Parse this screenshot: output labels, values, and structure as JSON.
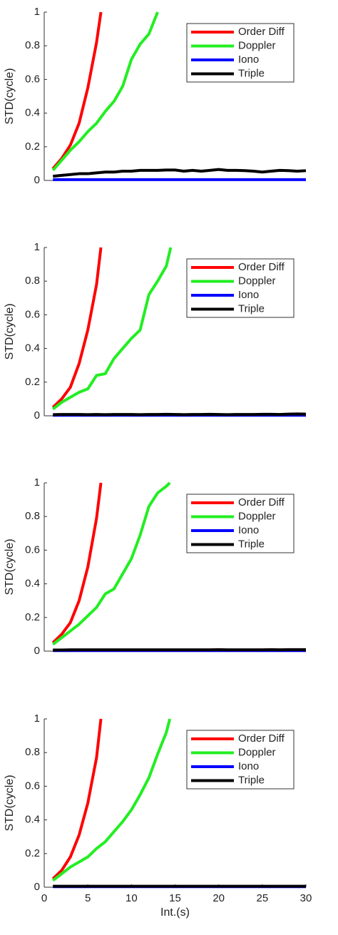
{
  "chart_data": [
    {
      "type": "line",
      "ylabel": "STD(cycle)",
      "xlim": [
        0,
        30
      ],
      "ylim": [
        0,
        1
      ],
      "yticks": [
        0,
        0.2,
        0.4,
        0.6,
        0.8,
        1
      ],
      "legend": "upper right",
      "series": [
        {
          "name": "Order Diff",
          "color": "#ff0000",
          "x": [
            1,
            2,
            3,
            4,
            5,
            6,
            6.5
          ],
          "values": [
            0.07,
            0.13,
            0.21,
            0.34,
            0.55,
            0.82,
            1.0
          ]
        },
        {
          "name": "Doppler",
          "color": "#22ee22",
          "x": [
            1,
            2,
            3,
            4,
            5,
            6,
            7,
            8,
            9,
            10,
            11,
            12,
            13
          ],
          "values": [
            0.06,
            0.12,
            0.18,
            0.23,
            0.29,
            0.34,
            0.41,
            0.47,
            0.56,
            0.72,
            0.81,
            0.87,
            1.0
          ]
        },
        {
          "name": "Iono",
          "color": "#0000ff",
          "x": [
            1,
            2,
            3,
            4,
            5,
            6,
            7,
            8,
            9,
            10,
            11,
            12,
            13,
            14,
            15,
            16,
            17,
            18,
            19,
            20,
            21,
            22,
            23,
            24,
            25,
            26,
            27,
            28,
            29,
            30
          ],
          "values": [
            0.005,
            0.005,
            0.005,
            0.005,
            0.005,
            0.005,
            0.005,
            0.005,
            0.005,
            0.005,
            0.005,
            0.005,
            0.005,
            0.005,
            0.005,
            0.005,
            0.005,
            0.005,
            0.005,
            0.005,
            0.005,
            0.005,
            0.005,
            0.005,
            0.005,
            0.005,
            0.005,
            0.005,
            0.005,
            0.005
          ]
        },
        {
          "name": "Triple",
          "color": "#000000",
          "x": [
            1,
            2,
            3,
            4,
            5,
            6,
            7,
            8,
            9,
            10,
            11,
            12,
            13,
            14,
            15,
            16,
            17,
            18,
            19,
            20,
            21,
            22,
            23,
            24,
            25,
            26,
            27,
            28,
            29,
            30
          ],
          "values": [
            0.025,
            0.03,
            0.035,
            0.04,
            0.04,
            0.045,
            0.05,
            0.05,
            0.055,
            0.055,
            0.06,
            0.06,
            0.06,
            0.062,
            0.062,
            0.055,
            0.06,
            0.055,
            0.06,
            0.065,
            0.06,
            0.06,
            0.058,
            0.055,
            0.05,
            0.055,
            0.06,
            0.058,
            0.055,
            0.058
          ]
        }
      ]
    },
    {
      "type": "line",
      "ylabel": "STD(cycle)",
      "xlim": [
        0,
        30
      ],
      "ylim": [
        0,
        1
      ],
      "yticks": [
        0,
        0.2,
        0.4,
        0.6,
        0.8,
        1
      ],
      "legend": "upper right",
      "series": [
        {
          "name": "Order Diff",
          "color": "#ff0000",
          "x": [
            1,
            2,
            3,
            4,
            5,
            6,
            6.5
          ],
          "values": [
            0.05,
            0.1,
            0.17,
            0.31,
            0.51,
            0.78,
            1.0
          ]
        },
        {
          "name": "Doppler",
          "color": "#22ee22",
          "x": [
            1,
            2,
            3,
            4,
            5,
            6,
            7,
            8,
            9,
            10,
            11,
            12,
            13,
            14,
            14.5
          ],
          "values": [
            0.04,
            0.08,
            0.11,
            0.14,
            0.16,
            0.24,
            0.25,
            0.34,
            0.4,
            0.46,
            0.51,
            0.72,
            0.8,
            0.89,
            1.0
          ]
        },
        {
          "name": "Iono",
          "color": "#0000ff",
          "x": [
            1,
            2,
            3,
            4,
            5,
            6,
            7,
            8,
            9,
            10,
            11,
            12,
            13,
            14,
            15,
            16,
            17,
            18,
            19,
            20,
            21,
            22,
            23,
            24,
            25,
            26,
            27,
            28,
            29,
            30
          ],
          "values": [
            0.003,
            0.003,
            0.003,
            0.003,
            0.003,
            0.003,
            0.003,
            0.003,
            0.003,
            0.003,
            0.003,
            0.003,
            0.003,
            0.003,
            0.003,
            0.003,
            0.003,
            0.003,
            0.003,
            0.003,
            0.003,
            0.003,
            0.003,
            0.003,
            0.003,
            0.003,
            0.003,
            0.003,
            0.003,
            0.003
          ]
        },
        {
          "name": "Triple",
          "color": "#000000",
          "x": [
            1,
            2,
            3,
            4,
            5,
            6,
            7,
            8,
            9,
            10,
            11,
            12,
            13,
            14,
            15,
            16,
            17,
            18,
            19,
            20,
            21,
            22,
            23,
            24,
            25,
            26,
            27,
            28,
            29,
            30
          ],
          "values": [
            0.007,
            0.008,
            0.008,
            0.008,
            0.007,
            0.008,
            0.007,
            0.008,
            0.008,
            0.008,
            0.007,
            0.008,
            0.008,
            0.009,
            0.008,
            0.007,
            0.008,
            0.008,
            0.009,
            0.008,
            0.007,
            0.008,
            0.008,
            0.008,
            0.009,
            0.009,
            0.008,
            0.01,
            0.011,
            0.01
          ]
        }
      ]
    },
    {
      "type": "line",
      "ylabel": "STD(cycle)",
      "xlim": [
        0,
        30
      ],
      "ylim": [
        0,
        1
      ],
      "yticks": [
        0,
        0.2,
        0.4,
        0.6,
        0.8,
        1
      ],
      "legend": "upper right",
      "series": [
        {
          "name": "Order Diff",
          "color": "#ff0000",
          "x": [
            1,
            2,
            3,
            4,
            5,
            6,
            6.5
          ],
          "values": [
            0.05,
            0.1,
            0.17,
            0.3,
            0.5,
            0.79,
            1.0
          ]
        },
        {
          "name": "Doppler",
          "color": "#22ee22",
          "x": [
            1,
            2,
            3,
            4,
            5,
            6,
            7,
            8,
            9,
            10,
            11,
            12,
            13,
            14,
            14.4
          ],
          "values": [
            0.04,
            0.08,
            0.12,
            0.16,
            0.21,
            0.26,
            0.34,
            0.37,
            0.46,
            0.55,
            0.69,
            0.86,
            0.94,
            0.98,
            1.0
          ]
        },
        {
          "name": "Iono",
          "color": "#0000ff",
          "x": [
            1,
            2,
            3,
            4,
            5,
            6,
            7,
            8,
            9,
            10,
            11,
            12,
            13,
            14,
            15,
            16,
            17,
            18,
            19,
            20,
            21,
            22,
            23,
            24,
            25,
            26,
            27,
            28,
            29,
            30
          ],
          "values": [
            0.003,
            0.003,
            0.003,
            0.003,
            0.003,
            0.003,
            0.003,
            0.003,
            0.003,
            0.003,
            0.003,
            0.003,
            0.003,
            0.003,
            0.003,
            0.003,
            0.003,
            0.003,
            0.003,
            0.003,
            0.003,
            0.003,
            0.003,
            0.003,
            0.003,
            0.003,
            0.003,
            0.003,
            0.003,
            0.003
          ]
        },
        {
          "name": "Triple",
          "color": "#000000",
          "x": [
            1,
            2,
            3,
            4,
            5,
            6,
            7,
            8,
            9,
            10,
            11,
            12,
            13,
            14,
            15,
            16,
            17,
            18,
            19,
            20,
            21,
            22,
            23,
            24,
            25,
            26,
            27,
            28,
            29,
            30
          ],
          "values": [
            0.007,
            0.007,
            0.008,
            0.008,
            0.008,
            0.008,
            0.008,
            0.008,
            0.008,
            0.008,
            0.008,
            0.008,
            0.008,
            0.008,
            0.008,
            0.008,
            0.008,
            0.008,
            0.008,
            0.009,
            0.008,
            0.008,
            0.008,
            0.008,
            0.008,
            0.009,
            0.008,
            0.009,
            0.009,
            0.009
          ]
        }
      ]
    },
    {
      "type": "line",
      "ylabel": "STD(cycle)",
      "xlabel": "Int.(s)",
      "xlim": [
        0,
        30
      ],
      "xticks": [
        0,
        5,
        10,
        15,
        20,
        25,
        30
      ],
      "ylim": [
        0,
        1
      ],
      "yticks": [
        0,
        0.2,
        0.4,
        0.6,
        0.8,
        1
      ],
      "legend": "upper right",
      "series": [
        {
          "name": "Order Diff",
          "color": "#ff0000",
          "x": [
            1,
            2,
            3,
            4,
            5,
            6,
            6.5
          ],
          "values": [
            0.05,
            0.1,
            0.18,
            0.31,
            0.5,
            0.77,
            1.0
          ]
        },
        {
          "name": "Doppler",
          "color": "#22ee22",
          "x": [
            1,
            2,
            3,
            4,
            5,
            6,
            7,
            8,
            9,
            10,
            11,
            12,
            13,
            14,
            14.4
          ],
          "values": [
            0.04,
            0.08,
            0.12,
            0.15,
            0.18,
            0.23,
            0.27,
            0.33,
            0.39,
            0.46,
            0.55,
            0.65,
            0.79,
            0.92,
            1.0
          ]
        },
        {
          "name": "Iono",
          "color": "#0000ff",
          "x": [
            1,
            2,
            3,
            4,
            5,
            6,
            7,
            8,
            9,
            10,
            11,
            12,
            13,
            14,
            15,
            16,
            17,
            18,
            19,
            20,
            21,
            22,
            23,
            24,
            25,
            26,
            27,
            28,
            29,
            30
          ],
          "values": [
            0.003,
            0.003,
            0.003,
            0.003,
            0.003,
            0.003,
            0.003,
            0.003,
            0.003,
            0.003,
            0.003,
            0.003,
            0.003,
            0.003,
            0.003,
            0.003,
            0.003,
            0.003,
            0.003,
            0.003,
            0.003,
            0.003,
            0.003,
            0.003,
            0.003,
            0.003,
            0.003,
            0.003,
            0.003,
            0.003
          ]
        },
        {
          "name": "Triple",
          "color": "#000000",
          "x": [
            1,
            2,
            3,
            4,
            5,
            6,
            7,
            8,
            9,
            10,
            11,
            12,
            13,
            14,
            15,
            16,
            17,
            18,
            19,
            20,
            21,
            22,
            23,
            24,
            25,
            26,
            27,
            28,
            29,
            30
          ],
          "values": [
            0.006,
            0.006,
            0.006,
            0.006,
            0.006,
            0.006,
            0.006,
            0.006,
            0.006,
            0.006,
            0.006,
            0.006,
            0.006,
            0.006,
            0.006,
            0.006,
            0.006,
            0.006,
            0.006,
            0.006,
            0.006,
            0.006,
            0.006,
            0.006,
            0.006,
            0.006,
            0.006,
            0.006,
            0.006,
            0.006
          ]
        }
      ]
    }
  ]
}
